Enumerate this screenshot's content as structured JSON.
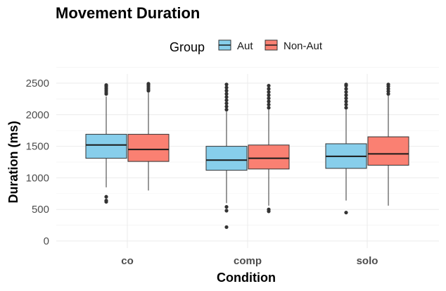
{
  "chart_data": {
    "type": "boxplot",
    "title": "Movement Duration",
    "xlabel": "Condition",
    "ylabel": "Duration (ms)",
    "ylim": [
      0,
      2500
    ],
    "yticks": [
      0,
      500,
      1000,
      1500,
      2000,
      2500
    ],
    "grid": true,
    "legend": {
      "title": "Group",
      "position": "top",
      "entries": [
        "Aut",
        "Non-Aut"
      ]
    },
    "categories": [
      "co",
      "comp",
      "solo"
    ],
    "series": [
      {
        "name": "Aut",
        "color": "#87CEEB",
        "boxes": [
          {
            "category": "co",
            "whisker_low": 850,
            "q1": 1310,
            "median": 1520,
            "q3": 1690,
            "whisker_high": 2290,
            "outliers": [
              700,
              640,
              620,
              2330,
              2360,
              2390,
              2420,
              2450,
              2470
            ]
          },
          {
            "category": "comp",
            "whisker_low": 600,
            "q1": 1120,
            "median": 1280,
            "q3": 1500,
            "whisker_high": 2050,
            "outliers": [
              540,
              480,
              220,
              2080,
              2130,
              2180,
              2230,
              2280,
              2330,
              2380,
              2430,
              2480
            ]
          },
          {
            "category": "solo",
            "whisker_low": 640,
            "q1": 1150,
            "median": 1340,
            "q3": 1540,
            "whisker_high": 2080,
            "outliers": [
              450,
              2110,
              2160,
              2210,
              2260,
              2310,
              2360,
              2410,
              2460,
              2480
            ]
          }
        ]
      },
      {
        "name": "Non-Aut",
        "color": "#FA8072",
        "boxes": [
          {
            "category": "co",
            "whisker_low": 800,
            "q1": 1260,
            "median": 1450,
            "q3": 1690,
            "whisker_high": 2350,
            "outliers": [
              2380,
              2410,
              2440,
              2470,
              2490
            ]
          },
          {
            "category": "comp",
            "whisker_low": 560,
            "q1": 1140,
            "median": 1310,
            "q3": 1520,
            "whisker_high": 2080,
            "outliers": [
              500,
              470,
              2110,
              2160,
              2210,
              2260,
              2310,
              2360,
              2410,
              2460
            ]
          },
          {
            "category": "solo",
            "whisker_low": 560,
            "q1": 1200,
            "median": 1380,
            "q3": 1650,
            "whisker_high": 2300,
            "outliers": [
              2330,
              2370,
              2410,
              2450,
              2480
            ]
          }
        ]
      }
    ]
  }
}
